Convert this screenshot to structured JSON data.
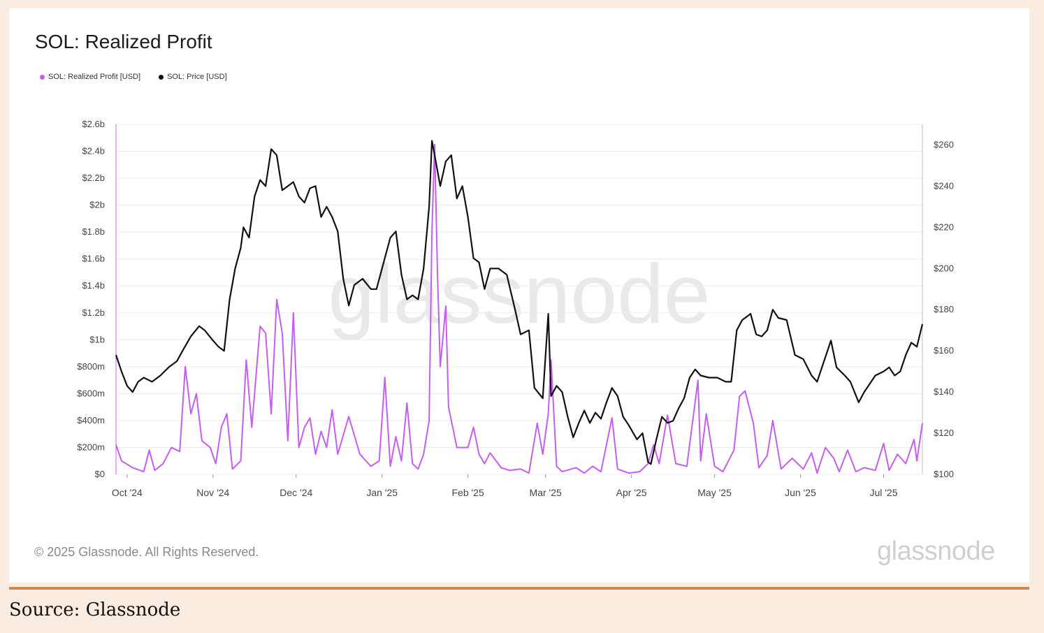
{
  "card": {
    "title": "SOL: Realized Profit",
    "copyright": "© 2025 Glassnode. All Rights Reserved.",
    "brand": "glassnode",
    "watermark": "glassnode"
  },
  "source": "Source: Glassnode",
  "colors": {
    "profit": "#c55ef0",
    "price": "#111111",
    "grid": "#ececec"
  },
  "chart_data": {
    "type": "line",
    "title": "SOL: Realized Profit",
    "legend": [
      {
        "name": "SOL: Realized Profit [USD]",
        "color": "#c55ef0"
      },
      {
        "name": "SOL: Price [USD]",
        "color": "#111111"
      }
    ],
    "x_ticks": [
      "Oct '24",
      "Nov '24",
      "Dec '24",
      "Jan '25",
      "Feb '25",
      "Mar '25",
      "Apr '25",
      "May '25",
      "Jun '25",
      "Jul '25"
    ],
    "xlim": [
      "2024-09-27",
      "2025-07-15"
    ],
    "y_left": {
      "ylim": [
        0,
        2600000000
      ],
      "ticks": [
        0,
        200000000,
        400000000,
        600000000,
        800000000,
        1000000000,
        1200000000,
        1400000000,
        1600000000,
        1800000000,
        2000000000,
        2200000000,
        2400000000,
        2600000000
      ],
      "tick_labels": [
        "$0",
        "$200m",
        "$400m",
        "$600m",
        "$800m",
        "$1b",
        "$1.2b",
        "$1.4b",
        "$1.6b",
        "$1.8b",
        "$2b",
        "$2.2b",
        "$2.4b",
        "$2.6b"
      ]
    },
    "y_right": {
      "ylim": [
        100,
        270
      ],
      "ticks": [
        100,
        120,
        140,
        160,
        180,
        200,
        220,
        240,
        260
      ],
      "tick_labels": [
        "$100",
        "$120",
        "$140",
        "$160",
        "$180",
        "$200",
        "$220",
        "$240",
        "$260"
      ]
    },
    "series": [
      {
        "name": "SOL: Realized Profit [USD]",
        "axis": "left",
        "points": [
          [
            "2024-09-27",
            220000000
          ],
          [
            "2024-09-29",
            100000000
          ],
          [
            "2024-10-03",
            50000000
          ],
          [
            "2024-10-07",
            20000000
          ],
          [
            "2024-10-09",
            180000000
          ],
          [
            "2024-10-11",
            30000000
          ],
          [
            "2024-10-14",
            80000000
          ],
          [
            "2024-10-17",
            200000000
          ],
          [
            "2024-10-20",
            170000000
          ],
          [
            "2024-10-22",
            800000000
          ],
          [
            "2024-10-24",
            450000000
          ],
          [
            "2024-10-26",
            600000000
          ],
          [
            "2024-10-28",
            250000000
          ],
          [
            "2024-10-31",
            200000000
          ],
          [
            "2024-11-02",
            80000000
          ],
          [
            "2024-11-04",
            350000000
          ],
          [
            "2024-11-06",
            450000000
          ],
          [
            "2024-11-08",
            40000000
          ],
          [
            "2024-11-11",
            100000000
          ],
          [
            "2024-11-13",
            850000000
          ],
          [
            "2024-11-15",
            350000000
          ],
          [
            "2024-11-18",
            1100000000
          ],
          [
            "2024-11-20",
            1050000000
          ],
          [
            "2024-11-22",
            450000000
          ],
          [
            "2024-11-24",
            1300000000
          ],
          [
            "2024-11-26",
            1050000000
          ],
          [
            "2024-11-28",
            250000000
          ],
          [
            "2024-11-30",
            1200000000
          ],
          [
            "2024-12-02",
            200000000
          ],
          [
            "2024-12-04",
            350000000
          ],
          [
            "2024-12-06",
            420000000
          ],
          [
            "2024-12-08",
            150000000
          ],
          [
            "2024-12-10",
            320000000
          ],
          [
            "2024-12-12",
            200000000
          ],
          [
            "2024-12-14",
            480000000
          ],
          [
            "2024-12-16",
            150000000
          ],
          [
            "2024-12-20",
            430000000
          ],
          [
            "2024-12-24",
            150000000
          ],
          [
            "2024-12-28",
            60000000
          ],
          [
            "2024-12-31",
            100000000
          ],
          [
            "2025-01-02",
            720000000
          ],
          [
            "2025-01-04",
            60000000
          ],
          [
            "2025-01-06",
            280000000
          ],
          [
            "2025-01-08",
            100000000
          ],
          [
            "2025-01-10",
            530000000
          ],
          [
            "2025-01-12",
            80000000
          ],
          [
            "2025-01-14",
            40000000
          ],
          [
            "2025-01-16",
            150000000
          ],
          [
            "2025-01-18",
            400000000
          ],
          [
            "2025-01-19",
            1800000000
          ],
          [
            "2025-01-20",
            2450000000
          ],
          [
            "2025-01-21",
            1500000000
          ],
          [
            "2025-01-22",
            800000000
          ],
          [
            "2025-01-24",
            1250000000
          ],
          [
            "2025-01-25",
            500000000
          ],
          [
            "2025-01-28",
            200000000
          ],
          [
            "2025-02-01",
            200000000
          ],
          [
            "2025-02-03",
            350000000
          ],
          [
            "2025-02-05",
            150000000
          ],
          [
            "2025-02-07",
            80000000
          ],
          [
            "2025-02-09",
            160000000
          ],
          [
            "2025-02-13",
            50000000
          ],
          [
            "2025-02-16",
            30000000
          ],
          [
            "2025-02-20",
            40000000
          ],
          [
            "2025-02-23",
            10000000
          ],
          [
            "2025-02-26",
            380000000
          ],
          [
            "2025-02-28",
            150000000
          ],
          [
            "2025-03-02",
            450000000
          ],
          [
            "2025-03-03",
            850000000
          ],
          [
            "2025-03-05",
            60000000
          ],
          [
            "2025-03-07",
            20000000
          ],
          [
            "2025-03-12",
            50000000
          ],
          [
            "2025-03-15",
            10000000
          ],
          [
            "2025-03-18",
            60000000
          ],
          [
            "2025-03-21",
            20000000
          ],
          [
            "2025-03-25",
            420000000
          ],
          [
            "2025-03-27",
            40000000
          ],
          [
            "2025-03-31",
            10000000
          ],
          [
            "2025-04-04",
            20000000
          ],
          [
            "2025-04-07",
            80000000
          ],
          [
            "2025-04-09",
            220000000
          ],
          [
            "2025-04-11",
            80000000
          ],
          [
            "2025-04-14",
            440000000
          ],
          [
            "2025-04-17",
            80000000
          ],
          [
            "2025-04-21",
            60000000
          ],
          [
            "2025-04-25",
            700000000
          ],
          [
            "2025-04-26",
            100000000
          ],
          [
            "2025-04-28",
            450000000
          ],
          [
            "2025-05-01",
            60000000
          ],
          [
            "2025-05-04",
            20000000
          ],
          [
            "2025-05-08",
            180000000
          ],
          [
            "2025-05-10",
            580000000
          ],
          [
            "2025-05-12",
            620000000
          ],
          [
            "2025-05-15",
            380000000
          ],
          [
            "2025-05-17",
            50000000
          ],
          [
            "2025-05-20",
            140000000
          ],
          [
            "2025-05-22",
            400000000
          ],
          [
            "2025-05-25",
            40000000
          ],
          [
            "2025-05-29",
            120000000
          ],
          [
            "2025-06-02",
            40000000
          ],
          [
            "2025-06-05",
            160000000
          ],
          [
            "2025-06-07",
            10000000
          ],
          [
            "2025-06-10",
            200000000
          ],
          [
            "2025-06-13",
            120000000
          ],
          [
            "2025-06-15",
            20000000
          ],
          [
            "2025-06-18",
            180000000
          ],
          [
            "2025-06-21",
            20000000
          ],
          [
            "2025-06-24",
            50000000
          ],
          [
            "2025-06-28",
            30000000
          ],
          [
            "2025-07-01",
            230000000
          ],
          [
            "2025-07-03",
            30000000
          ],
          [
            "2025-07-06",
            150000000
          ],
          [
            "2025-07-09",
            80000000
          ],
          [
            "2025-07-11",
            200000000
          ],
          [
            "2025-07-12",
            260000000
          ],
          [
            "2025-07-13",
            100000000
          ],
          [
            "2025-07-15",
            380000000
          ]
        ]
      },
      {
        "name": "SOL: Price [USD]",
        "axis": "right",
        "points": [
          [
            "2024-09-27",
            158
          ],
          [
            "2024-09-29",
            150
          ],
          [
            "2024-10-01",
            143
          ],
          [
            "2024-10-03",
            140
          ],
          [
            "2024-10-05",
            145
          ],
          [
            "2024-10-07",
            147
          ],
          [
            "2024-10-10",
            145
          ],
          [
            "2024-10-13",
            148
          ],
          [
            "2024-10-16",
            152
          ],
          [
            "2024-10-19",
            155
          ],
          [
            "2024-10-21",
            160
          ],
          [
            "2024-10-24",
            167
          ],
          [
            "2024-10-27",
            172
          ],
          [
            "2024-10-29",
            170
          ],
          [
            "2024-11-01",
            165
          ],
          [
            "2024-11-03",
            162
          ],
          [
            "2024-11-05",
            160
          ],
          [
            "2024-11-07",
            185
          ],
          [
            "2024-11-09",
            200
          ],
          [
            "2024-11-11",
            210
          ],
          [
            "2024-11-12",
            220
          ],
          [
            "2024-11-14",
            215
          ],
          [
            "2024-11-16",
            235
          ],
          [
            "2024-11-18",
            243
          ],
          [
            "2024-11-20",
            240
          ],
          [
            "2024-11-22",
            258
          ],
          [
            "2024-11-24",
            255
          ],
          [
            "2024-11-26",
            238
          ],
          [
            "2024-11-28",
            240
          ],
          [
            "2024-11-30",
            242
          ],
          [
            "2024-12-02",
            235
          ],
          [
            "2024-12-04",
            232
          ],
          [
            "2024-12-06",
            239
          ],
          [
            "2024-12-08",
            240
          ],
          [
            "2024-12-10",
            225
          ],
          [
            "2024-12-12",
            230
          ],
          [
            "2024-12-14",
            225
          ],
          [
            "2024-12-16",
            218
          ],
          [
            "2024-12-18",
            195
          ],
          [
            "2024-12-20",
            182
          ],
          [
            "2024-12-22",
            192
          ],
          [
            "2024-12-25",
            195
          ],
          [
            "2024-12-28",
            190
          ],
          [
            "2024-12-30",
            190
          ],
          [
            "2025-01-01",
            200
          ],
          [
            "2025-01-04",
            215
          ],
          [
            "2025-01-06",
            218
          ],
          [
            "2025-01-08",
            197
          ],
          [
            "2025-01-10",
            185
          ],
          [
            "2025-01-12",
            187
          ],
          [
            "2025-01-14",
            185
          ],
          [
            "2025-01-16",
            200
          ],
          [
            "2025-01-18",
            230
          ],
          [
            "2025-01-19",
            262
          ],
          [
            "2025-01-20",
            255
          ],
          [
            "2025-01-22",
            240
          ],
          [
            "2025-01-24",
            252
          ],
          [
            "2025-01-26",
            255
          ],
          [
            "2025-01-28",
            234
          ],
          [
            "2025-01-30",
            240
          ],
          [
            "2025-02-01",
            225
          ],
          [
            "2025-02-03",
            205
          ],
          [
            "2025-02-05",
            203
          ],
          [
            "2025-02-07",
            190
          ],
          [
            "2025-02-09",
            200
          ],
          [
            "2025-02-12",
            200
          ],
          [
            "2025-02-15",
            197
          ],
          [
            "2025-02-18",
            180
          ],
          [
            "2025-02-20",
            168
          ],
          [
            "2025-02-23",
            170
          ],
          [
            "2025-02-25",
            142
          ],
          [
            "2025-02-28",
            137
          ],
          [
            "2025-03-02",
            178
          ],
          [
            "2025-03-03",
            138
          ],
          [
            "2025-03-05",
            143
          ],
          [
            "2025-03-07",
            140
          ],
          [
            "2025-03-09",
            128
          ],
          [
            "2025-03-11",
            118
          ],
          [
            "2025-03-13",
            125
          ],
          [
            "2025-03-15",
            131
          ],
          [
            "2025-03-17",
            125
          ],
          [
            "2025-03-19",
            130
          ],
          [
            "2025-03-21",
            127
          ],
          [
            "2025-03-23",
            135
          ],
          [
            "2025-03-25",
            142
          ],
          [
            "2025-03-27",
            138
          ],
          [
            "2025-03-29",
            128
          ],
          [
            "2025-03-31",
            124
          ],
          [
            "2025-04-03",
            117
          ],
          [
            "2025-04-05",
            120
          ],
          [
            "2025-04-07",
            106
          ],
          [
            "2025-04-08",
            105
          ],
          [
            "2025-04-10",
            117
          ],
          [
            "2025-04-12",
            128
          ],
          [
            "2025-04-14",
            125
          ],
          [
            "2025-04-16",
            126
          ],
          [
            "2025-04-18",
            132
          ],
          [
            "2025-04-20",
            137
          ],
          [
            "2025-04-22",
            147
          ],
          [
            "2025-04-24",
            151
          ],
          [
            "2025-04-26",
            148
          ],
          [
            "2025-04-29",
            147
          ],
          [
            "2025-05-02",
            147
          ],
          [
            "2025-05-05",
            145
          ],
          [
            "2025-05-07",
            145
          ],
          [
            "2025-05-09",
            170
          ],
          [
            "2025-05-11",
            175
          ],
          [
            "2025-05-13",
            177
          ],
          [
            "2025-05-14",
            178
          ],
          [
            "2025-05-16",
            168
          ],
          [
            "2025-05-18",
            167
          ],
          [
            "2025-05-20",
            170
          ],
          [
            "2025-05-22",
            180
          ],
          [
            "2025-05-24",
            176
          ],
          [
            "2025-05-27",
            175
          ],
          [
            "2025-05-30",
            158
          ],
          [
            "2025-06-02",
            156
          ],
          [
            "2025-06-05",
            148
          ],
          [
            "2025-06-07",
            145
          ],
          [
            "2025-06-10",
            157
          ],
          [
            "2025-06-12",
            165
          ],
          [
            "2025-06-14",
            152
          ],
          [
            "2025-06-17",
            148
          ],
          [
            "2025-06-19",
            145
          ],
          [
            "2025-06-22",
            135
          ],
          [
            "2025-06-24",
            140
          ],
          [
            "2025-06-26",
            144
          ],
          [
            "2025-06-28",
            148
          ],
          [
            "2025-07-01",
            150
          ],
          [
            "2025-07-03",
            152
          ],
          [
            "2025-07-05",
            148
          ],
          [
            "2025-07-07",
            150
          ],
          [
            "2025-07-09",
            158
          ],
          [
            "2025-07-11",
            164
          ],
          [
            "2025-07-13",
            162
          ],
          [
            "2025-07-15",
            173
          ]
        ]
      }
    ]
  }
}
